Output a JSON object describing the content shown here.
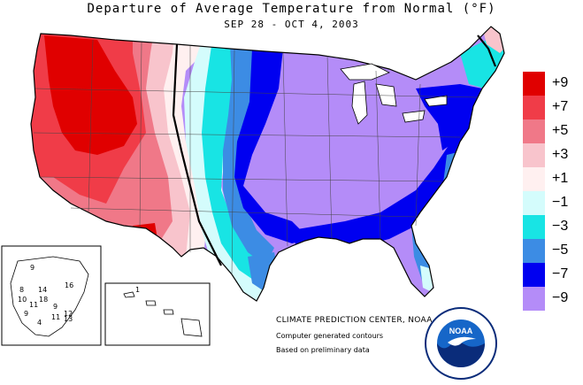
{
  "title": "Departure of Average Temperature from Normal (°F)",
  "subtitle": "SEP 28 - OCT  4, 2003",
  "legend": [
    {
      "label": "+9",
      "color": "#e00000"
    },
    {
      "label": "+7",
      "color": "#f03c48"
    },
    {
      "label": "+5",
      "color": "#f07888"
    },
    {
      "label": "+3",
      "color": "#f8c4cc"
    },
    {
      "label": "+1",
      "color": "#fff0f0"
    },
    {
      "label": "−1",
      "color": "#d4fcfc"
    },
    {
      "label": "−3",
      "color": "#18e4e4"
    },
    {
      "label": "−5",
      "color": "#3c8ce4"
    },
    {
      "label": "−7",
      "color": "#0000f0"
    },
    {
      "label": "−9",
      "color": "#b48cf8"
    }
  ],
  "credits": {
    "line1": "CLIMATE PREDICTION CENTER, NOAA",
    "line2": "Computer generated contours",
    "line3": "Based on preliminary data"
  },
  "alaska_inset": {
    "stations": [
      "9",
      "8",
      "14",
      "16",
      "10",
      "11",
      "18",
      "9",
      "12",
      "9",
      "11",
      "13",
      "4"
    ]
  },
  "hawaii_inset": {
    "stations": [
      "1"
    ]
  },
  "logo_text": "NOAA"
}
